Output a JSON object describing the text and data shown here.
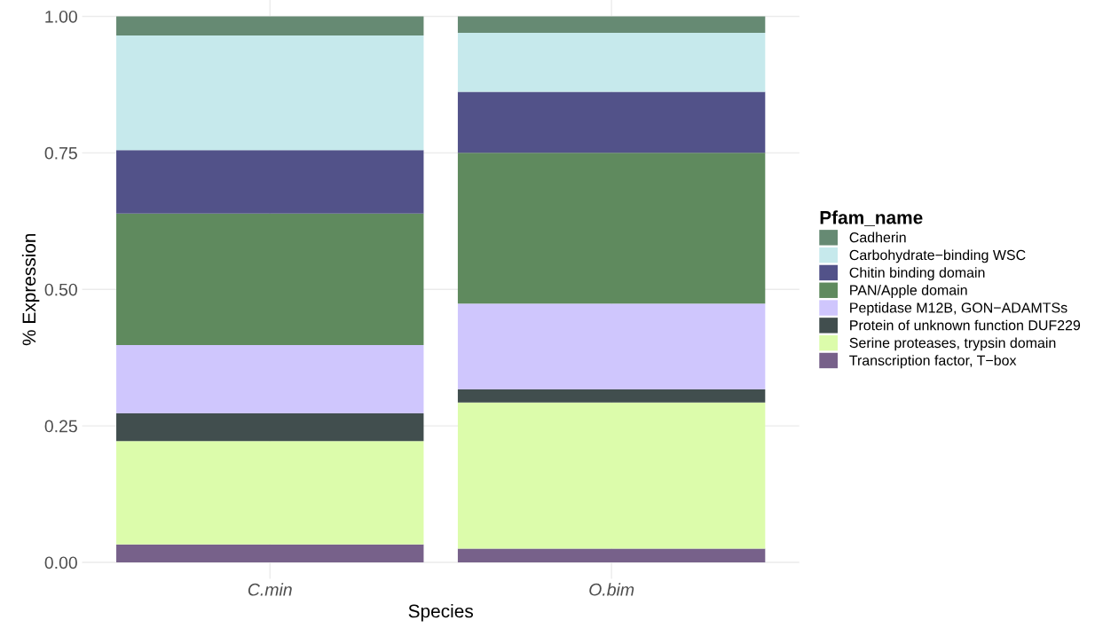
{
  "chart_data": {
    "type": "bar",
    "stacked": true,
    "xlabel": "Species",
    "ylabel": "% Expression",
    "legend_title": "Pfam_name",
    "legend": "right",
    "grid": true,
    "categories": [
      "C.min",
      "O.bim"
    ],
    "ylim": [
      -0.03,
      1.03
    ],
    "yticks": [
      {
        "value": 0,
        "label": "0.00"
      },
      {
        "value": 0.25,
        "label": "0.25"
      },
      {
        "value": 0.5,
        "label": "0.50"
      },
      {
        "value": 0.75,
        "label": "0.75"
      },
      {
        "value": 1,
        "label": "1.00"
      }
    ],
    "series": [
      {
        "name": "Transcription factor, T−box",
        "color": "#77618a",
        "values": [
          0.033,
          0.025
        ]
      },
      {
        "name": "Serine proteases, trypsin domain",
        "color": "#dcfcab",
        "values": [
          0.189,
          0.268
        ]
      },
      {
        "name": "Protein of unknown function DUF229",
        "color": "#414e4e",
        "values": [
          0.051,
          0.024
        ]
      },
      {
        "name": "Peptidase M12B, GON−ADAMTSs",
        "color": "#cfc6fd",
        "values": [
          0.125,
          0.157
        ]
      },
      {
        "name": "PAN/Apple domain",
        "color": "#5f8a5e",
        "values": [
          0.241,
          0.276
        ]
      },
      {
        "name": "Chitin binding domain",
        "color": "#525289",
        "values": [
          0.116,
          0.112
        ]
      },
      {
        "name": "Carbohydrate−binding WSC",
        "color": "#c6e9ec",
        "values": [
          0.21,
          0.108
        ]
      },
      {
        "name": "Cadherin",
        "color": "#668a73",
        "values": [
          0.035,
          0.03
        ]
      }
    ]
  }
}
